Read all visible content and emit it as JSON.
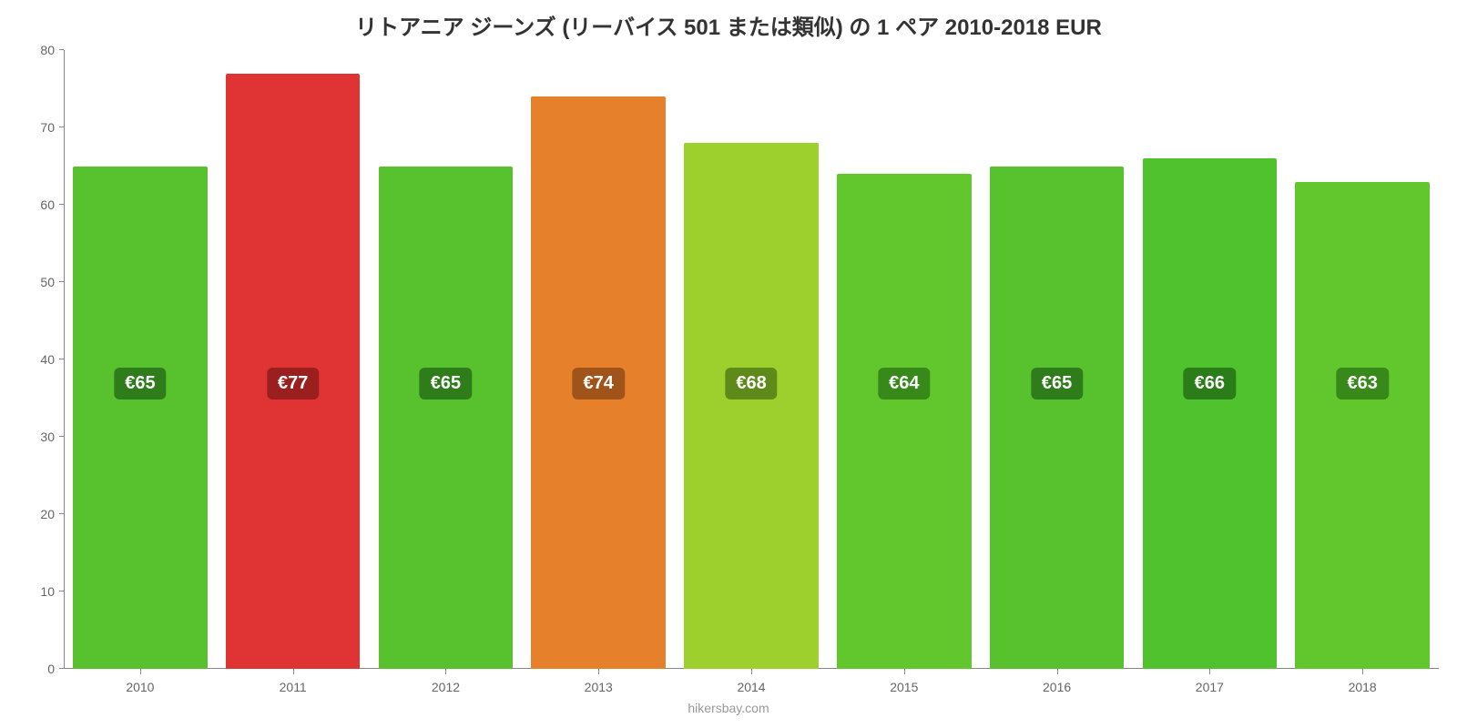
{
  "chart": {
    "type": "bar",
    "title": "リトアニア ジーンズ (リーバイス 501 または類似) の 1 ペア 2010-2018 EUR",
    "title_fontsize": 24,
    "title_color": "#333333",
    "attribution": "hikersbay.com",
    "attribution_color": "#999999",
    "attribution_fontsize": 14,
    "background_color": "#ffffff",
    "axis_color": "#888888",
    "tick_label_color": "#666666",
    "tick_label_fontsize": 14,
    "ylim": [
      0,
      80
    ],
    "ytick_step": 10,
    "yticks": [
      0,
      10,
      20,
      30,
      40,
      50,
      60,
      70,
      80
    ],
    "currency_prefix": "€",
    "bar_width_pct": 88,
    "badge_fontsize": 20,
    "badge_text_color": "#ffffff",
    "categories": [
      "2010",
      "2011",
      "2012",
      "2013",
      "2014",
      "2015",
      "2016",
      "2017",
      "2018"
    ],
    "values": [
      65,
      77,
      65,
      74,
      68,
      64,
      65,
      66,
      63
    ],
    "bar_colors": [
      "#57c22d",
      "#e03434",
      "#57c22d",
      "#e6802a",
      "#9dcf2d",
      "#62c72d",
      "#57c22d",
      "#50c22d",
      "#62c72d"
    ],
    "badge_colors": [
      "#2e7d1a",
      "#9c1f1f",
      "#2e7d1a",
      "#a0541a",
      "#5e8a1a",
      "#378a1a",
      "#2e7d1a",
      "#2b7d1a",
      "#378a1a"
    ],
    "badge_y_value": 37
  }
}
